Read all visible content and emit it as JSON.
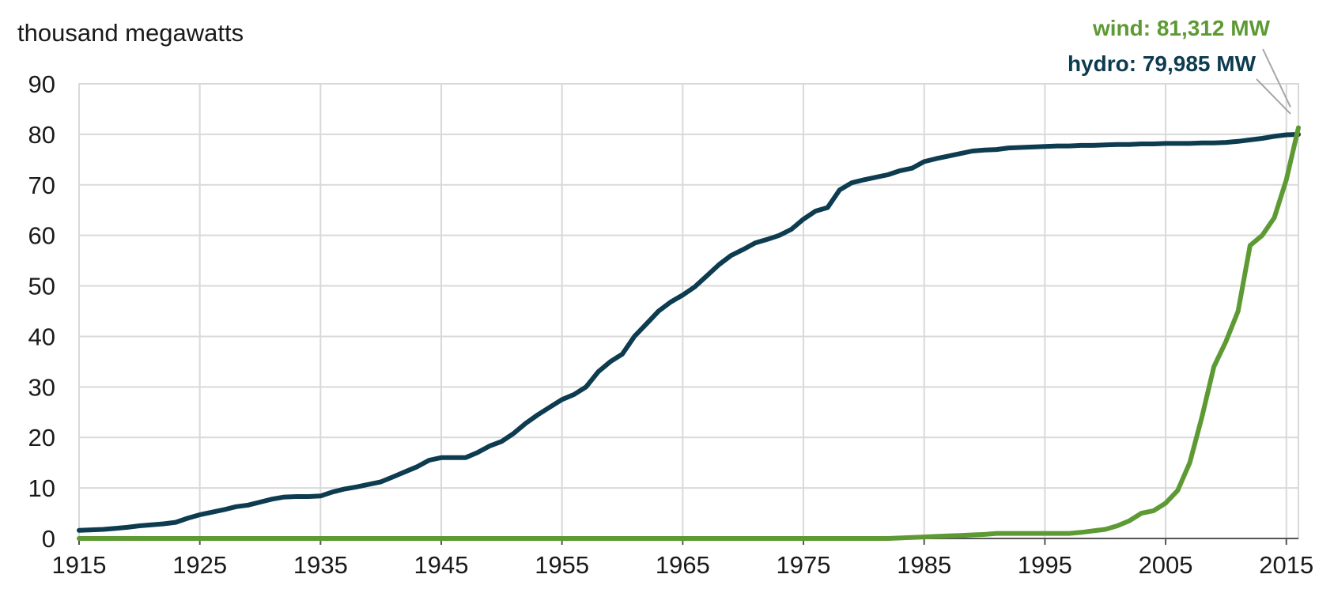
{
  "chart_data": {
    "type": "line",
    "ylabel": "thousand megawatts",
    "xlim": [
      1915,
      2016
    ],
    "ylim": [
      0,
      90
    ],
    "yticks": [
      0,
      10,
      20,
      30,
      40,
      50,
      60,
      70,
      80,
      90
    ],
    "xticks": [
      1915,
      1925,
      1935,
      1945,
      1955,
      1965,
      1975,
      1985,
      1995,
      2005,
      2015
    ],
    "grid": true,
    "x": [
      1915,
      1916,
      1917,
      1918,
      1919,
      1920,
      1921,
      1922,
      1923,
      1924,
      1925,
      1926,
      1927,
      1928,
      1929,
      1930,
      1931,
      1932,
      1933,
      1934,
      1935,
      1936,
      1937,
      1938,
      1939,
      1940,
      1941,
      1942,
      1943,
      1944,
      1945,
      1946,
      1947,
      1948,
      1949,
      1950,
      1951,
      1952,
      1953,
      1954,
      1955,
      1956,
      1957,
      1958,
      1959,
      1960,
      1961,
      1962,
      1963,
      1964,
      1965,
      1966,
      1967,
      1968,
      1969,
      1970,
      1971,
      1972,
      1973,
      1974,
      1975,
      1976,
      1977,
      1978,
      1979,
      1980,
      1981,
      1982,
      1983,
      1984,
      1985,
      1986,
      1987,
      1988,
      1989,
      1990,
      1991,
      1992,
      1993,
      1994,
      1995,
      1996,
      1997,
      1998,
      1999,
      2000,
      2001,
      2002,
      2003,
      2004,
      2005,
      2006,
      2007,
      2008,
      2009,
      2010,
      2011,
      2012,
      2013,
      2014,
      2015,
      2016
    ],
    "series": [
      {
        "name": "hydro",
        "color": "#0d3b4f",
        "values": [
          1.6,
          1.7,
          1.8,
          2.0,
          2.2,
          2.5,
          2.7,
          2.9,
          3.2,
          4.0,
          4.7,
          5.2,
          5.7,
          6.3,
          6.6,
          7.2,
          7.8,
          8.2,
          8.3,
          8.3,
          8.4,
          9.2,
          9.8,
          10.2,
          10.7,
          11.2,
          12.2,
          13.2,
          14.2,
          15.5,
          16.0,
          16.0,
          16.0,
          17.0,
          18.3,
          19.2,
          20.8,
          22.8,
          24.5,
          26.0,
          27.5,
          28.5,
          30.0,
          33.0,
          35.0,
          36.5,
          40.0,
          42.5,
          45.0,
          46.8,
          48.2,
          49.8,
          52.0,
          54.2,
          56.0,
          57.2,
          58.5,
          59.2,
          60.0,
          61.2,
          63.2,
          64.8,
          65.5,
          69.0,
          70.4,
          71.0,
          71.5,
          72.0,
          72.8,
          73.3,
          74.6,
          75.2,
          75.7,
          76.2,
          76.7,
          76.9,
          77.0,
          77.3,
          77.4,
          77.5,
          77.6,
          77.7,
          77.7,
          77.8,
          77.8,
          77.9,
          78.0,
          78.0,
          78.1,
          78.1,
          78.2,
          78.2,
          78.2,
          78.3,
          78.3,
          78.4,
          78.6,
          78.9,
          79.2,
          79.6,
          79.9,
          79.985
        ]
      },
      {
        "name": "wind",
        "color": "#5e9a34",
        "values": [
          0,
          0,
          0,
          0,
          0,
          0,
          0,
          0,
          0,
          0,
          0,
          0,
          0,
          0,
          0,
          0,
          0,
          0,
          0,
          0,
          0,
          0,
          0,
          0,
          0,
          0,
          0,
          0,
          0,
          0,
          0,
          0,
          0,
          0,
          0,
          0,
          0,
          0,
          0,
          0,
          0,
          0,
          0,
          0,
          0,
          0,
          0,
          0,
          0,
          0,
          0,
          0,
          0,
          0,
          0,
          0,
          0,
          0,
          0,
          0,
          0,
          0,
          0,
          0,
          0,
          0,
          0,
          0,
          0.1,
          0.2,
          0.3,
          0.4,
          0.5,
          0.6,
          0.7,
          0.8,
          1.0,
          1.0,
          1.0,
          1.0,
          1.0,
          1.0,
          1.0,
          1.2,
          1.5,
          1.8,
          2.5,
          3.5,
          5.0,
          5.5,
          7.0,
          9.5,
          15.0,
          24.0,
          34.0,
          39.0,
          45.0,
          58.0,
          60.0,
          63.5,
          71.0,
          81.312
        ]
      }
    ],
    "annotations": [
      {
        "text": "wind: 81,312 MW",
        "color": "#5e9a34"
      },
      {
        "text": "hydro: 79,985 MW",
        "color": "#0d3b4f"
      }
    ]
  }
}
